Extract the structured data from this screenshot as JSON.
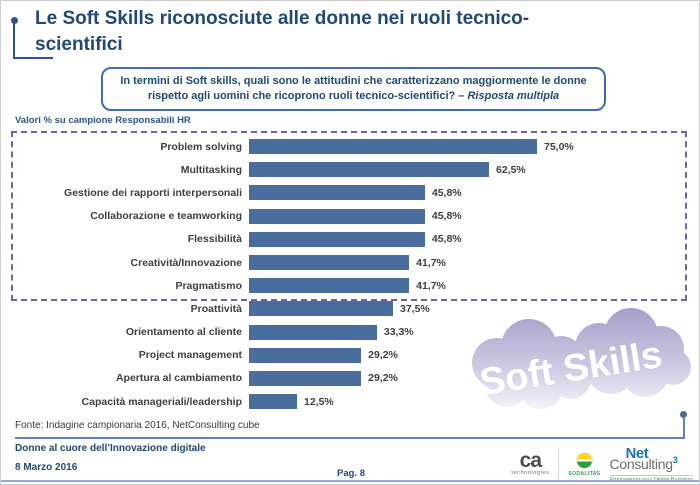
{
  "slide": {
    "title_line1": "Le Soft Skills riconosciute alle donne nei ruoli tecnico-",
    "title_line2": "scientifici",
    "question": {
      "line1": "In termini di Soft skills, quali sono le attitudini che caratterizzano maggiormente le donne",
      "line2_normal": "rispetto agli uomini che ricoprono ruoli tecnico-scientifici? – ",
      "line2_italic": "Risposta multipla"
    },
    "note": "Valori % su campione Responsabili HR",
    "watermark": "Soft Skills",
    "footer": {
      "source": "Fonte: Indagine campionaria 2016, NetConsulting cube",
      "event": "Donne al cuore dell’Innovazione digitale",
      "date": "8 Marzo 2016",
      "page": "Pag. 8"
    },
    "logos": {
      "ca_name": "ca",
      "ca_sub": "technologies",
      "sodalitas": "SODALITAS",
      "nc_net": "Net",
      "nc_consulting": "Consulting",
      "nc_sup": "3",
      "nc_tagline": "Empowering your Digital Business"
    }
  },
  "chart_data": {
    "type": "bar",
    "orientation": "horizontal",
    "title": "Soft skills riconosciute alle donne in ruoli tecnico-scientifici (Responsabili HR, risposta multipla)",
    "categories": [
      "Problem solving",
      "Multitasking",
      "Gestione dei rapporti interpersonali",
      "Collaborazione e teamworking",
      "Flessibilità",
      "Creatività/Innovazione",
      "Pragmatismo",
      "Proattività",
      "Orientamento al cliente",
      "Project management",
      "Apertura al cambiamento",
      "Capacità manageriali/leadership"
    ],
    "values": [
      75.0,
      62.5,
      45.8,
      45.8,
      45.8,
      41.7,
      41.7,
      37.5,
      33.3,
      29.2,
      29.2,
      12.5
    ],
    "value_labels": [
      "75,0%",
      "62,5%",
      "45,8%",
      "45,8%",
      "45,8%",
      "41,7%",
      "41,7%",
      "37,5%",
      "33,3%",
      "29,2%",
      "29,2%",
      "12,5%"
    ],
    "unit": "%",
    "xlim": [
      0,
      100
    ],
    "grid": false,
    "legend": null,
    "bar_color": "#4A6D9E",
    "highlighted_rows": 7,
    "highlight_style": "dashed purple box around the top 7 bars"
  },
  "colors": {
    "title_blue": "#1F4978",
    "accent_blue": "#2E5394",
    "question_border": "#3F6AB5",
    "bar_blue": "#4A6D9E",
    "dashed_purple": "#7B5FA6",
    "label_gray": "#3F3F3F",
    "rule_blue": "#5C83BC",
    "logo_blue": "#1B75BB",
    "logo_green": "#4AA147"
  }
}
